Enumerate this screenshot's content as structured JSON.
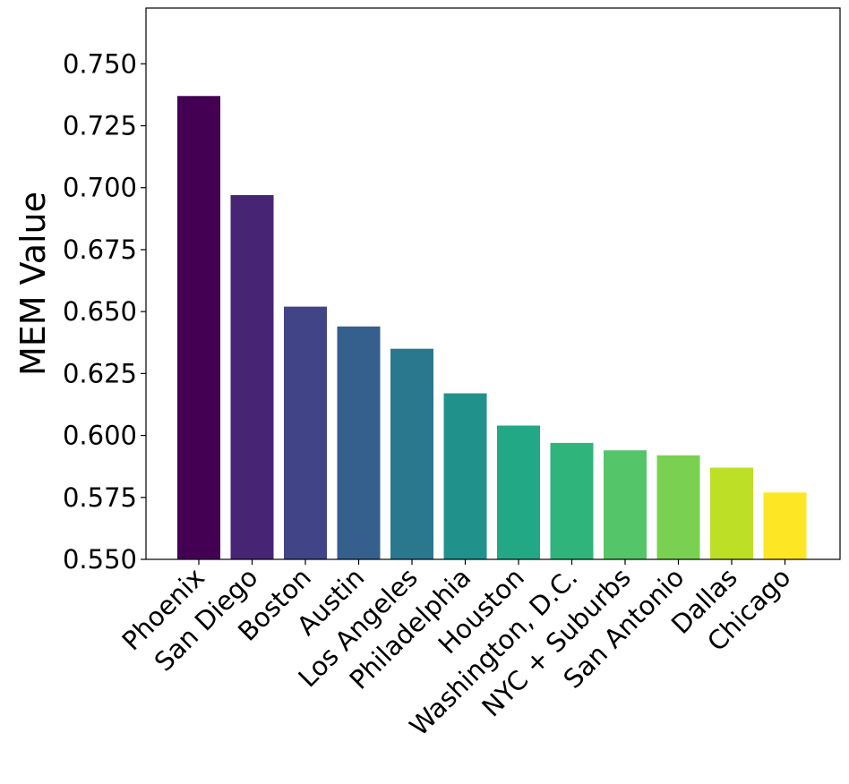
{
  "chart_data": {
    "type": "bar",
    "title": "",
    "xlabel": "",
    "ylabel": "MEM Value",
    "ylim": [
      0.55,
      0.7725
    ],
    "yticks": [
      "0.550",
      "0.575",
      "0.600",
      "0.625",
      "0.650",
      "0.675",
      "0.700",
      "0.725",
      "0.750"
    ],
    "grid": false,
    "legend": "none",
    "categories": [
      "Phoenix",
      "San Diego",
      "Boston",
      "Austin",
      "Los Angeles",
      "Philadelphia",
      "Houston",
      "Washington, D.C.",
      "NYC + Suburbs",
      "San Antonio",
      "Dallas",
      "Chicago"
    ],
    "values": [
      0.737,
      0.697,
      0.652,
      0.644,
      0.635,
      0.617,
      0.604,
      0.597,
      0.594,
      0.592,
      0.587,
      0.577
    ],
    "colors": [
      "#440154",
      "#482475",
      "#414487",
      "#355f8d",
      "#2a788e",
      "#21918c",
      "#22a884",
      "#2fb47c",
      "#54c568",
      "#7ad151",
      "#bddf26",
      "#fde725"
    ]
  }
}
